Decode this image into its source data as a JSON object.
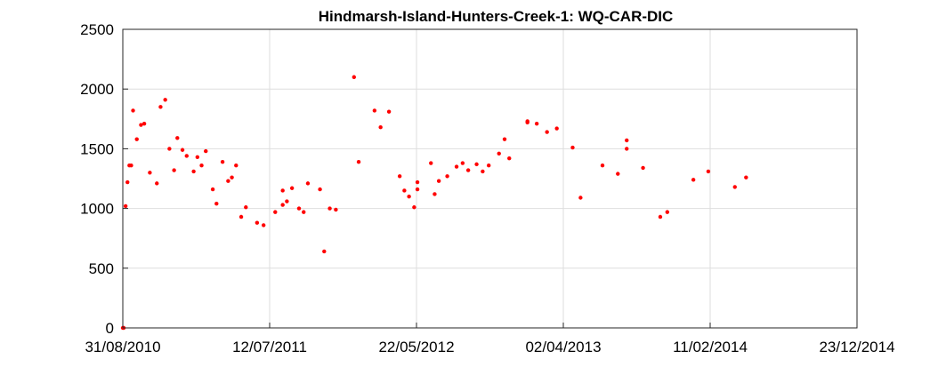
{
  "chart_data": {
    "type": "scatter",
    "title": "Hindmarsh-Island-Hunters-Creek-1: WQ-CAR-DIC",
    "xlabel": "",
    "ylabel": "",
    "x_axis_type": "date",
    "xlim": [
      "2010-08-31",
      "2014-12-23"
    ],
    "ylim": [
      0,
      2500
    ],
    "x_tick_labels": [
      "31/08/2010",
      "12/07/2011",
      "22/05/2012",
      "02/04/2013",
      "11/02/2014",
      "23/12/2014"
    ],
    "x_ticks": [
      "2010-08-31",
      "2011-07-12",
      "2012-05-22",
      "2013-04-02",
      "2014-02-11",
      "2014-12-23"
    ],
    "y_ticks": [
      0,
      500,
      1000,
      1500,
      2000,
      2500
    ],
    "y_tick_labels": [
      "0",
      "500",
      "1000",
      "1500",
      "2000",
      "2500"
    ],
    "grid": true,
    "marker_color": "#ff0000",
    "series": [
      {
        "points": [
          [
            "2010-08-31",
            0
          ],
          [
            "2010-09-02",
            0
          ],
          [
            "2010-09-06",
            1020
          ],
          [
            "2010-09-10",
            1220
          ],
          [
            "2010-09-14",
            1360
          ],
          [
            "2010-09-18",
            1360
          ],
          [
            "2010-09-22",
            1820
          ],
          [
            "2010-09-30",
            1580
          ],
          [
            "2010-10-09",
            1700
          ],
          [
            "2010-10-16",
            1710
          ],
          [
            "2010-10-28",
            1300
          ],
          [
            "2010-11-12",
            1210
          ],
          [
            "2010-11-20",
            1850
          ],
          [
            "2010-11-30",
            1910
          ],
          [
            "2010-12-09",
            1500
          ],
          [
            "2010-12-19",
            1320
          ],
          [
            "2010-12-26",
            1590
          ],
          [
            "2011-01-06",
            1490
          ],
          [
            "2011-01-15",
            1440
          ],
          [
            "2011-01-30",
            1310
          ],
          [
            "2011-02-07",
            1430
          ],
          [
            "2011-02-16",
            1360
          ],
          [
            "2011-02-25",
            1480
          ],
          [
            "2011-03-12",
            1160
          ],
          [
            "2011-03-20",
            1040
          ],
          [
            "2011-04-02",
            1390
          ],
          [
            "2011-04-14",
            1230
          ],
          [
            "2011-04-22",
            1260
          ],
          [
            "2011-05-01",
            1360
          ],
          [
            "2011-05-12",
            930
          ],
          [
            "2011-05-22",
            1010
          ],
          [
            "2011-06-15",
            880
          ],
          [
            "2011-06-29",
            860
          ],
          [
            "2011-07-24",
            970
          ],
          [
            "2011-08-09",
            1030
          ],
          [
            "2011-08-09",
            1150
          ],
          [
            "2011-08-18",
            1060
          ],
          [
            "2011-08-29",
            1170
          ],
          [
            "2011-09-13",
            1000
          ],
          [
            "2011-09-23",
            970
          ],
          [
            "2011-10-02",
            1210
          ],
          [
            "2011-10-28",
            1160
          ],
          [
            "2011-11-06",
            640
          ],
          [
            "2011-11-18",
            1000
          ],
          [
            "2011-12-01",
            990
          ],
          [
            "2012-01-09",
            2100
          ],
          [
            "2012-01-19",
            1390
          ],
          [
            "2012-02-22",
            1820
          ],
          [
            "2012-03-06",
            1680
          ],
          [
            "2012-03-24",
            1810
          ],
          [
            "2012-04-16",
            1270
          ],
          [
            "2012-04-26",
            1150
          ],
          [
            "2012-05-06",
            1100
          ],
          [
            "2012-05-17",
            1010
          ],
          [
            "2012-05-24",
            1160
          ],
          [
            "2012-05-24",
            1220
          ],
          [
            "2012-06-22",
            1380
          ],
          [
            "2012-06-30",
            1120
          ],
          [
            "2012-07-09",
            1230
          ],
          [
            "2012-07-27",
            1270
          ],
          [
            "2012-08-16",
            1350
          ],
          [
            "2012-08-29",
            1380
          ],
          [
            "2012-09-10",
            1320
          ],
          [
            "2012-09-28",
            1370
          ],
          [
            "2012-10-11",
            1310
          ],
          [
            "2012-10-24",
            1360
          ],
          [
            "2012-11-15",
            1460
          ],
          [
            "2012-11-27",
            1580
          ],
          [
            "2012-12-07",
            1420
          ],
          [
            "2013-01-15",
            1720
          ],
          [
            "2013-01-15",
            1730
          ],
          [
            "2013-02-04",
            1710
          ],
          [
            "2013-02-26",
            1640
          ],
          [
            "2013-03-19",
            1670
          ],
          [
            "2013-04-22",
            1510
          ],
          [
            "2013-05-09",
            1090
          ],
          [
            "2013-06-25",
            1360
          ],
          [
            "2013-07-28",
            1290
          ],
          [
            "2013-08-16",
            1500
          ],
          [
            "2013-08-16",
            1570
          ],
          [
            "2013-09-20",
            1340
          ],
          [
            "2013-10-27",
            930
          ],
          [
            "2013-11-11",
            970
          ],
          [
            "2014-01-06",
            1240
          ],
          [
            "2014-02-07",
            1310
          ],
          [
            "2014-04-05",
            1180
          ],
          [
            "2014-04-29",
            1260
          ]
        ]
      }
    ]
  }
}
